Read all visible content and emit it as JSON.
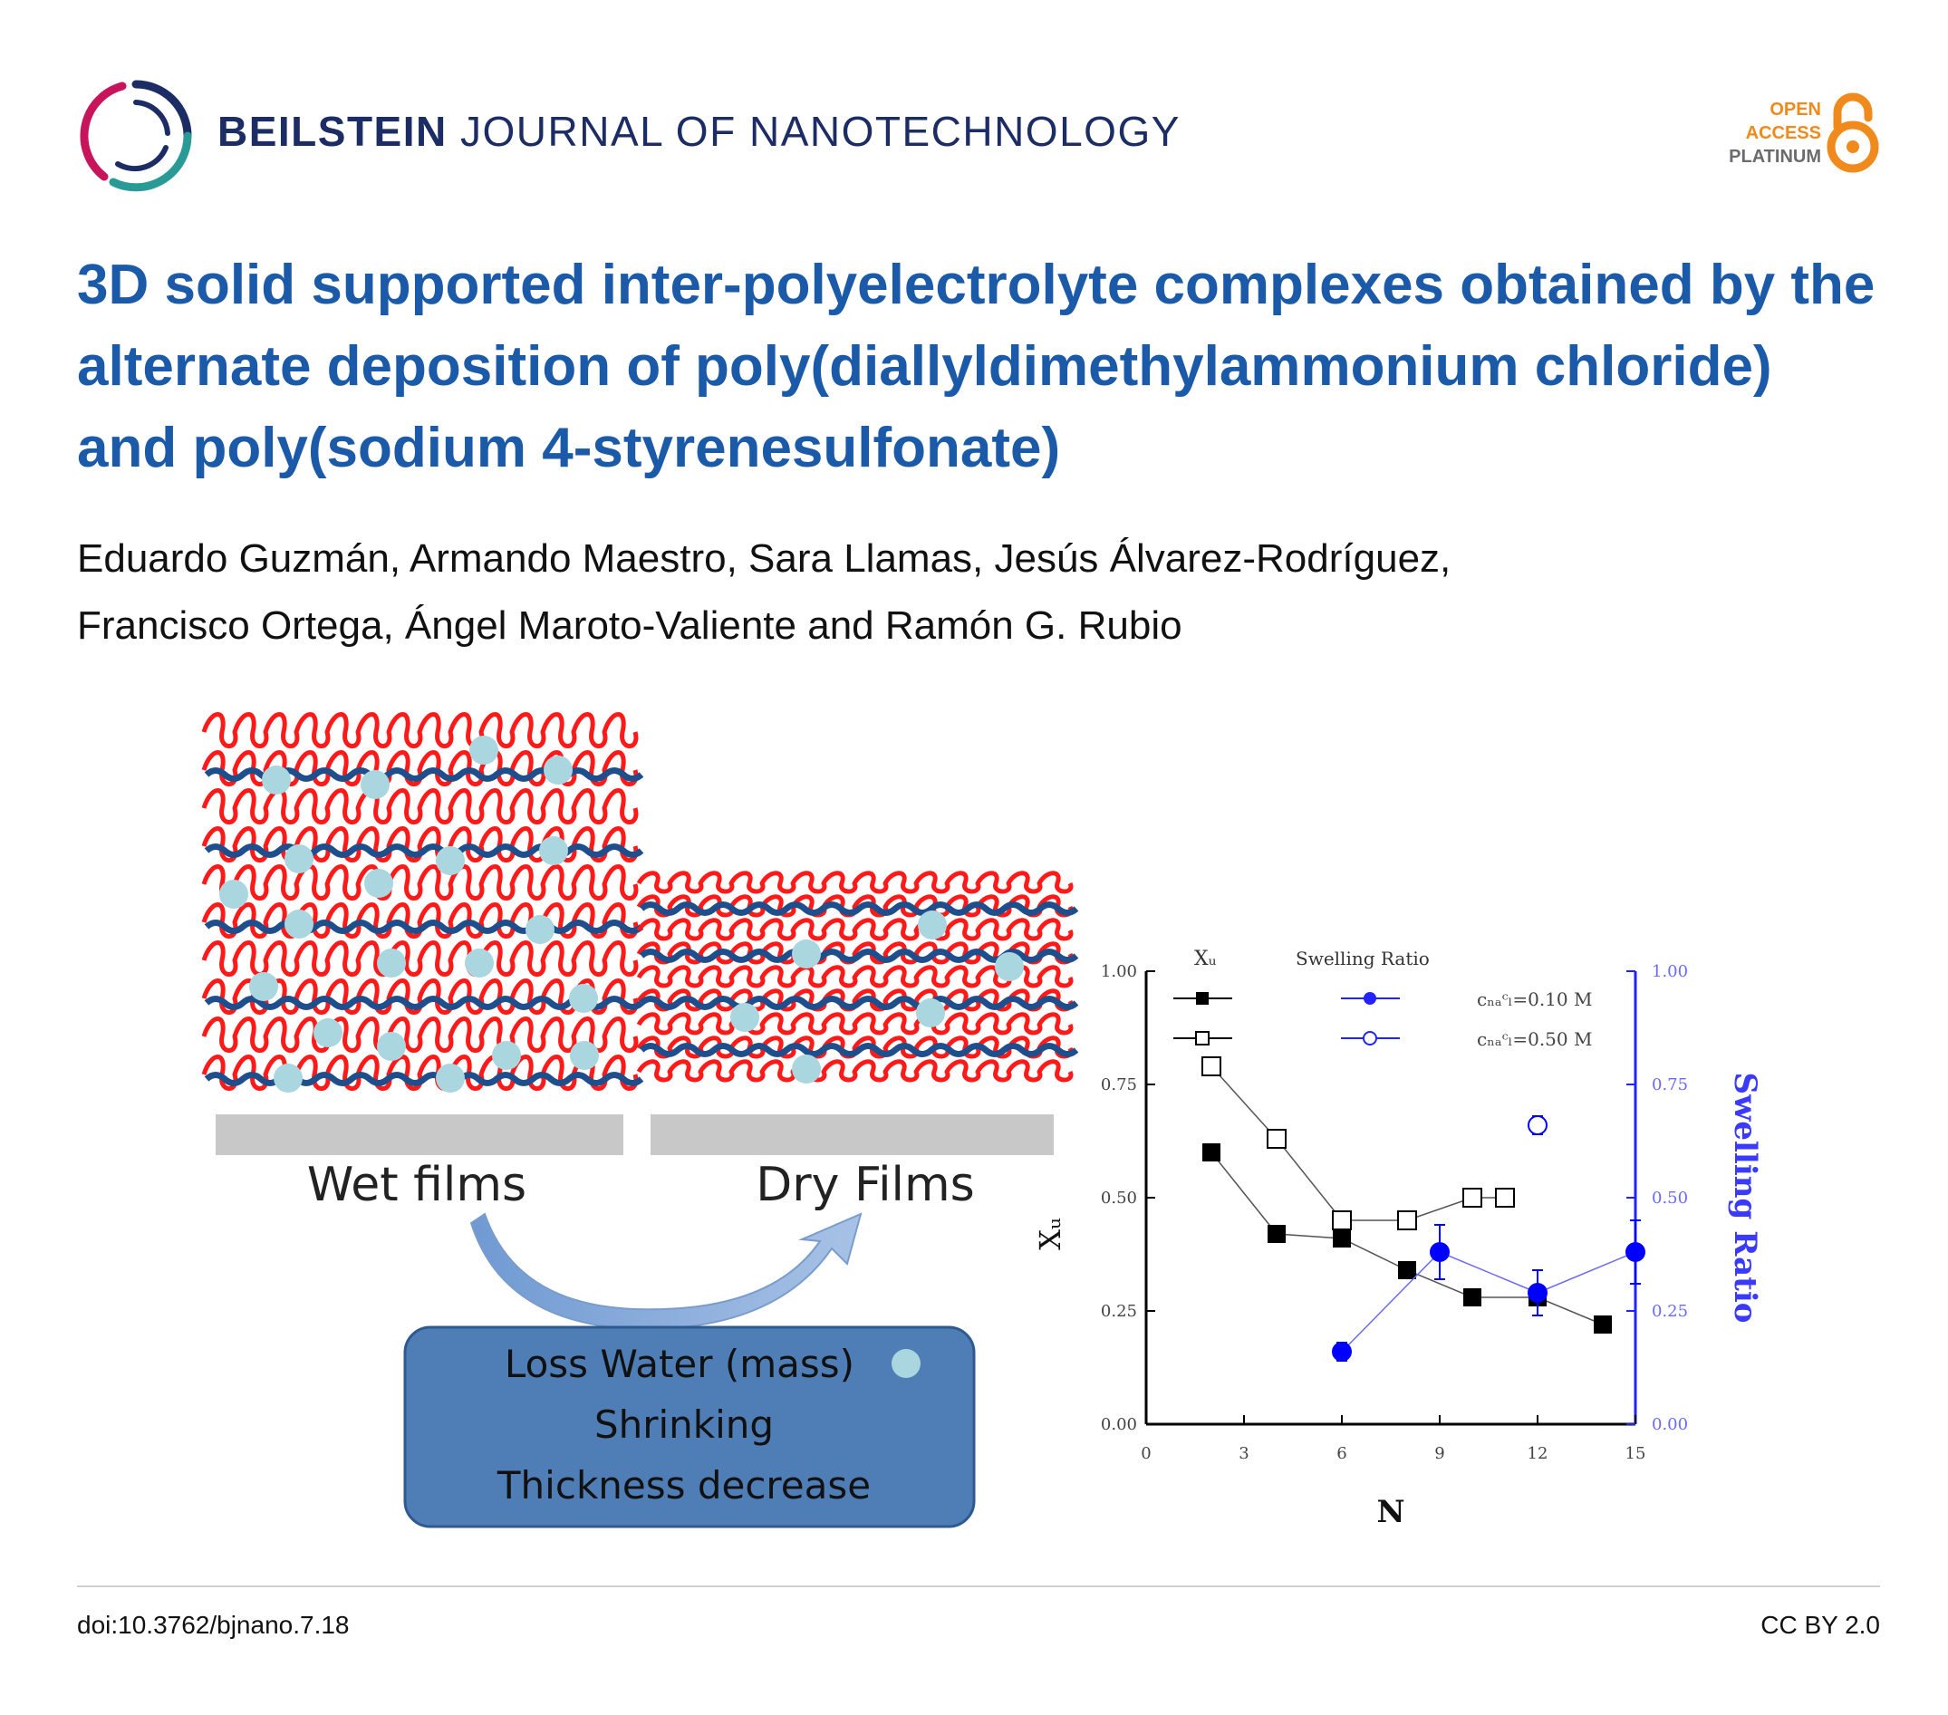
{
  "header": {
    "journal_name_strong": "BEILSTEIN",
    "journal_name_rest": "JOURNAL OF NANOTECHNOLOGY",
    "logo_icon": "beilstein-ring-logo-icon",
    "badge": {
      "line1": "OPEN",
      "line2": "ACCESS",
      "line3": "PLATINUM",
      "icon": "open-lock-icon",
      "accent": "#f08a1c"
    }
  },
  "article": {
    "title": "3D solid supported inter-polyelectrolyte complexes obtained by the alternate deposition of poly(diallyldimethylammonium chloride) and poly(sodium 4-styrenesulfonate)",
    "authors_line1": "Eduardo Guzmán, Armando Maestro, Sara Llamas, Jesús Álvarez-Rodríguez,",
    "authors_line2": "Francisco Ortega, Ángel Maroto-Valiente and Ramón G. Rubio"
  },
  "figure": {
    "wet_label": "Wet films",
    "dry_label": "Dry Films",
    "box_line1": "Loss Water (mass)",
    "box_line2": "Shrinking",
    "box_line3": "Thickness decrease",
    "colors": {
      "pdadmac": "#ff1a1a",
      "pss": "#1f4e8c",
      "water": "#a9d6df",
      "box": "#4f7db5",
      "arrow": "#8fb0dc"
    }
  },
  "chart_data": {
    "type": "scatter",
    "xlabel": "N",
    "ylabel_left": "Xᵤ",
    "ylabel_right": "Swelling Ratio",
    "xlim": [
      0,
      15
    ],
    "ylim_left": [
      0,
      1
    ],
    "ylim_right": [
      0,
      1
    ],
    "x_ticks": [
      "0",
      "3",
      "6",
      "9",
      "12",
      "15"
    ],
    "y_ticks": [
      "0.00",
      "0.25",
      "0.50",
      "0.75",
      "1.00"
    ],
    "legend": {
      "col1_header": "Xᵤ",
      "col2_header": "Swelling Ratio",
      "label1": "cₙₐᶜₗ=0.10 M",
      "label2": "cₙₐᶜₗ=0.50 M"
    },
    "series": [
      {
        "name": "Xᵤ c=0.10 M",
        "axis": "left",
        "marker": "filled-square",
        "color": "#000000",
        "x": [
          2,
          4,
          6,
          8,
          10,
          12,
          14
        ],
        "y": [
          0.6,
          0.42,
          0.41,
          0.34,
          0.28,
          0.28,
          0.22
        ]
      },
      {
        "name": "Xᵤ c=0.50 M",
        "axis": "left",
        "marker": "open-square",
        "color": "#000000",
        "x": [
          2,
          4,
          6,
          8,
          10,
          11
        ],
        "y": [
          0.79,
          0.63,
          0.45,
          0.45,
          0.5,
          0.5
        ]
      },
      {
        "name": "Swelling Ratio c=0.10 M",
        "axis": "right",
        "marker": "filled-circle",
        "color": "#0000ff",
        "x": [
          6,
          9,
          12,
          15
        ],
        "y": [
          0.16,
          0.38,
          0.29,
          0.38
        ],
        "err": [
          0.02,
          0.06,
          0.05,
          0.07
        ]
      },
      {
        "name": "Swelling Ratio c=0.50 M",
        "axis": "right",
        "marker": "open-circle",
        "color": "#0000ff",
        "x": [
          12
        ],
        "y": [
          0.66
        ],
        "err": [
          0.02
        ]
      }
    ]
  },
  "footer": {
    "doi": "doi:10.3762/bjnano.7.18",
    "license": "CC BY 2.0"
  }
}
